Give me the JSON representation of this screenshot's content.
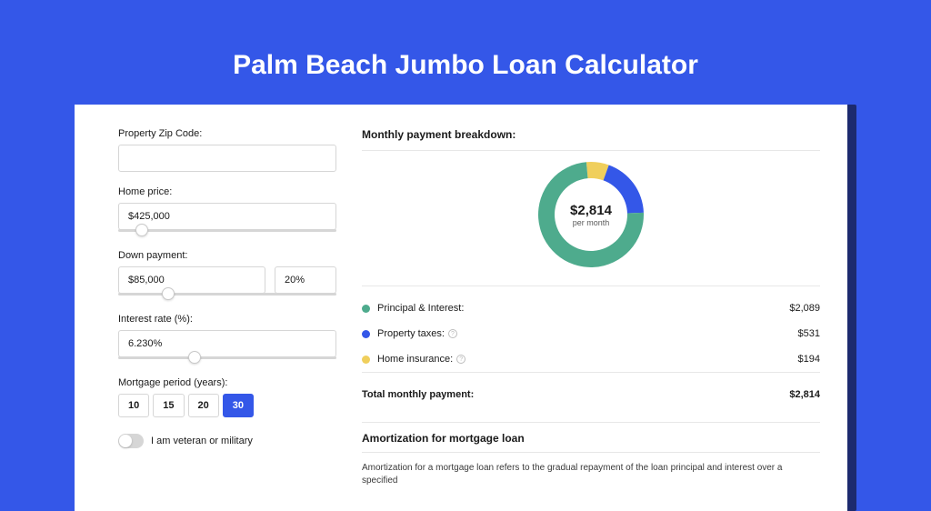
{
  "colors": {
    "page_bg": "#3457e8",
    "shadow_bg": "#1c2a6e",
    "card_bg": "#ffffff",
    "border": "#d6d6d6",
    "text": "#1a1a1a",
    "muted": "#5a5a5a",
    "divider": "#e7e7e7",
    "series_pi": "#4eab8d",
    "series_tax": "#3457e8",
    "series_ins": "#f0cf5c"
  },
  "title": "Palm Beach Jumbo Loan Calculator",
  "form": {
    "zip": {
      "label": "Property Zip Code:",
      "value": ""
    },
    "home_price": {
      "label": "Home price:",
      "value": "$425,000",
      "slider_pct": 8
    },
    "down_payment": {
      "label": "Down payment:",
      "value": "$85,000",
      "pct": "20%",
      "slider_pct": 20
    },
    "interest_rate": {
      "label": "Interest rate (%):",
      "value": "6.230%",
      "slider_pct": 32
    },
    "mortgage_period": {
      "label": "Mortgage period (years):",
      "options": [
        "10",
        "15",
        "20",
        "30"
      ],
      "selected": "30"
    },
    "veteran": {
      "label": "I am veteran or military",
      "on": false
    }
  },
  "breakdown": {
    "title": "Monthly payment breakdown:",
    "donut": {
      "value": "$2,814",
      "sub": "per month",
      "slices": [
        {
          "color": "#4eab8d",
          "pct": 74.2
        },
        {
          "color": "#3457e8",
          "pct": 18.9
        },
        {
          "color": "#f0cf5c",
          "pct": 6.9
        }
      ],
      "thickness": 18,
      "size": 120
    },
    "lines": [
      {
        "color": "#4eab8d",
        "label": "Principal & Interest:",
        "amount": "$2,089",
        "info": false
      },
      {
        "color": "#3457e8",
        "label": "Property taxes:",
        "amount": "$531",
        "info": true
      },
      {
        "color": "#f0cf5c",
        "label": "Home insurance:",
        "amount": "$194",
        "info": true
      }
    ],
    "total": {
      "label": "Total monthly payment:",
      "amount": "$2,814"
    }
  },
  "amortization": {
    "title": "Amortization for mortgage loan",
    "text": "Amortization for a mortgage loan refers to the gradual repayment of the loan principal and interest over a specified"
  }
}
